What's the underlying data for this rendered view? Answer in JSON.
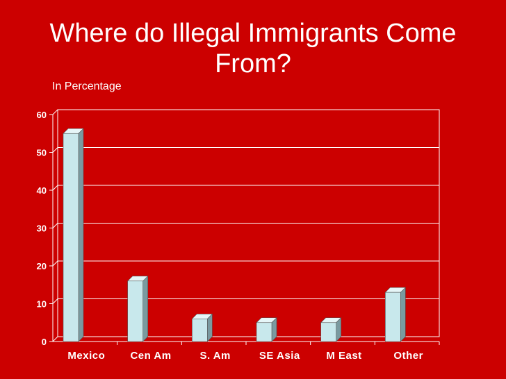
{
  "slide": {
    "title": "Where do Illegal Immigrants Come From?",
    "subtitle": "In Percentage"
  },
  "colors": {
    "background": "#cc0000",
    "bar_front": "#c8e8ec",
    "bar_side": "#7a9aa0",
    "bar_top": "#e6f6f8",
    "grid": "#ffffff"
  },
  "chart_data": {
    "type": "bar",
    "title": "",
    "xlabel": "",
    "ylabel": "",
    "categories": [
      "Mexico",
      "Cen Am",
      "S. Am",
      "SE Asia",
      "M East",
      "Other"
    ],
    "values": [
      55,
      16,
      6,
      5,
      5,
      13
    ],
    "ylim": [
      0,
      60
    ],
    "yticks": [
      0,
      10,
      20,
      30,
      40,
      50,
      60
    ],
    "grid": true,
    "legend": "none"
  }
}
